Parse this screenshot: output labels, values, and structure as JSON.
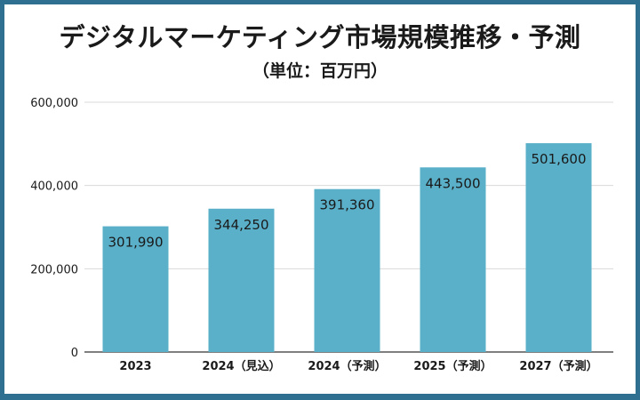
{
  "colors": {
    "frame": "#2f6f8f",
    "bar": "#5ab0c9",
    "grid": "#d9d9d9",
    "axis": "#333333"
  },
  "chart_data": {
    "type": "bar",
    "title": "デジタルマーケティング市場規模推移・予測",
    "subtitle": "（単位：百万円）",
    "categories": [
      "2023",
      "2024（見込）",
      "2024（予測）",
      "2025（予測）",
      "2027（予測）"
    ],
    "values": [
      301990,
      344250,
      391360,
      443500,
      501600
    ],
    "value_labels": [
      "301,990",
      "344,250",
      "391,360",
      "443,500",
      "501,600"
    ],
    "y_ticks": [
      0,
      200000,
      400000,
      600000
    ],
    "y_tick_labels": [
      "0",
      "200,000",
      "400,000",
      "600,000"
    ],
    "ylim": [
      0,
      600000
    ],
    "xlabel": "",
    "ylabel": "",
    "grid": true,
    "legend": "none"
  }
}
